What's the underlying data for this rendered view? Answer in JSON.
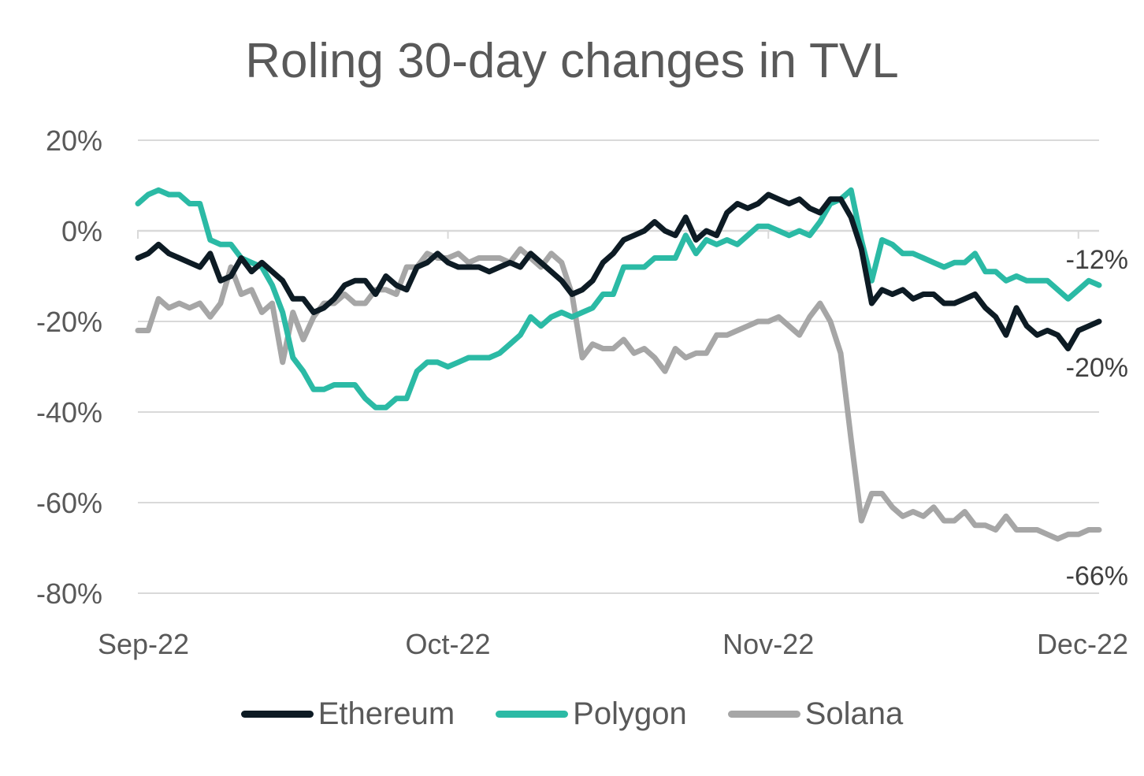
{
  "chart_data": {
    "type": "line",
    "title": "Roling 30-day changes in TVL",
    "xlabel": "",
    "ylabel": "",
    "ylim": [
      -80,
      20
    ],
    "y_ticks": [
      20,
      0,
      -20,
      -40,
      -60,
      -80
    ],
    "y_tick_labels": [
      "20%",
      "0%",
      "-20%",
      "-40%",
      "-60%",
      "-80%"
    ],
    "x_tick_labels": [
      "Sep-22",
      "Oct-22",
      "Nov-22",
      "Dec-22"
    ],
    "x_tick_dates": [
      "2022-09-01",
      "2022-10-01",
      "2022-11-01",
      "2022-12-01"
    ],
    "x_range": [
      "2022-09-01",
      "2022-12-03"
    ],
    "grid": "horizontal",
    "legend_position": "bottom",
    "series": [
      {
        "name": "Ethereum",
        "color": "#0d1b24",
        "end_label": "-20%",
        "points": [
          [
            "2022-09-01",
            -6
          ],
          [
            "2022-09-02",
            -5
          ],
          [
            "2022-09-03",
            -3
          ],
          [
            "2022-09-04",
            -5
          ],
          [
            "2022-09-05",
            -6
          ],
          [
            "2022-09-06",
            -7
          ],
          [
            "2022-09-07",
            -8
          ],
          [
            "2022-09-08",
            -5
          ],
          [
            "2022-09-09",
            -11
          ],
          [
            "2022-09-10",
            -10
          ],
          [
            "2022-09-11",
            -6
          ],
          [
            "2022-09-12",
            -9
          ],
          [
            "2022-09-13",
            -7
          ],
          [
            "2022-09-14",
            -9
          ],
          [
            "2022-09-15",
            -11
          ],
          [
            "2022-09-16",
            -15
          ],
          [
            "2022-09-17",
            -15
          ],
          [
            "2022-09-18",
            -18
          ],
          [
            "2022-09-19",
            -17
          ],
          [
            "2022-09-20",
            -15
          ],
          [
            "2022-09-21",
            -12
          ],
          [
            "2022-09-22",
            -11
          ],
          [
            "2022-09-23",
            -11
          ],
          [
            "2022-09-24",
            -14
          ],
          [
            "2022-09-25",
            -10
          ],
          [
            "2022-09-26",
            -12
          ],
          [
            "2022-09-27",
            -13
          ],
          [
            "2022-09-28",
            -8
          ],
          [
            "2022-09-29",
            -7
          ],
          [
            "2022-09-30",
            -5
          ],
          [
            "2022-10-01",
            -7
          ],
          [
            "2022-10-02",
            -8
          ],
          [
            "2022-10-03",
            -8
          ],
          [
            "2022-10-04",
            -8
          ],
          [
            "2022-10-05",
            -9
          ],
          [
            "2022-10-06",
            -8
          ],
          [
            "2022-10-07",
            -7
          ],
          [
            "2022-10-08",
            -8
          ],
          [
            "2022-10-09",
            -5
          ],
          [
            "2022-10-10",
            -7
          ],
          [
            "2022-10-11",
            -9
          ],
          [
            "2022-10-12",
            -11
          ],
          [
            "2022-10-13",
            -14
          ],
          [
            "2022-10-14",
            -13
          ],
          [
            "2022-10-15",
            -11
          ],
          [
            "2022-10-16",
            -7
          ],
          [
            "2022-10-17",
            -5
          ],
          [
            "2022-10-18",
            -2
          ],
          [
            "2022-10-19",
            -1
          ],
          [
            "2022-10-20",
            0
          ],
          [
            "2022-10-21",
            2
          ],
          [
            "2022-10-22",
            0
          ],
          [
            "2022-10-23",
            -1
          ],
          [
            "2022-10-24",
            3
          ],
          [
            "2022-10-25",
            -2
          ],
          [
            "2022-10-26",
            0
          ],
          [
            "2022-10-27",
            -1
          ],
          [
            "2022-10-28",
            4
          ],
          [
            "2022-10-29",
            6
          ],
          [
            "2022-10-30",
            5
          ],
          [
            "2022-10-31",
            6
          ],
          [
            "2022-11-01",
            8
          ],
          [
            "2022-11-02",
            7
          ],
          [
            "2022-11-03",
            6
          ],
          [
            "2022-11-04",
            7
          ],
          [
            "2022-11-05",
            5
          ],
          [
            "2022-11-06",
            4
          ],
          [
            "2022-11-07",
            7
          ],
          [
            "2022-11-08",
            7
          ],
          [
            "2022-11-09",
            3
          ],
          [
            "2022-11-10",
            -4
          ],
          [
            "2022-11-11",
            -16
          ],
          [
            "2022-11-12",
            -13
          ],
          [
            "2022-11-13",
            -14
          ],
          [
            "2022-11-14",
            -13
          ],
          [
            "2022-11-15",
            -15
          ],
          [
            "2022-11-16",
            -14
          ],
          [
            "2022-11-17",
            -14
          ],
          [
            "2022-11-18",
            -16
          ],
          [
            "2022-11-19",
            -16
          ],
          [
            "2022-11-20",
            -15
          ],
          [
            "2022-11-21",
            -14
          ],
          [
            "2022-11-22",
            -17
          ],
          [
            "2022-11-23",
            -19
          ],
          [
            "2022-11-24",
            -23
          ],
          [
            "2022-11-25",
            -17
          ],
          [
            "2022-11-26",
            -21
          ],
          [
            "2022-11-27",
            -23
          ],
          [
            "2022-11-28",
            -22
          ],
          [
            "2022-11-29",
            -23
          ],
          [
            "2022-11-30",
            -26
          ],
          [
            "2022-12-01",
            -22
          ],
          [
            "2022-12-02",
            -21
          ],
          [
            "2022-12-03",
            -20
          ]
        ]
      },
      {
        "name": "Polygon",
        "color": "#2bbaa5",
        "end_label": "-12%",
        "points": [
          [
            "2022-09-01",
            6
          ],
          [
            "2022-09-02",
            8
          ],
          [
            "2022-09-03",
            9
          ],
          [
            "2022-09-04",
            8
          ],
          [
            "2022-09-05",
            8
          ],
          [
            "2022-09-06",
            6
          ],
          [
            "2022-09-07",
            6
          ],
          [
            "2022-09-08",
            -2
          ],
          [
            "2022-09-09",
            -3
          ],
          [
            "2022-09-10",
            -3
          ],
          [
            "2022-09-11",
            -6
          ],
          [
            "2022-09-12",
            -7
          ],
          [
            "2022-09-13",
            -8
          ],
          [
            "2022-09-14",
            -12
          ],
          [
            "2022-09-15",
            -18
          ],
          [
            "2022-09-16",
            -28
          ],
          [
            "2022-09-17",
            -31
          ],
          [
            "2022-09-18",
            -35
          ],
          [
            "2022-09-19",
            -35
          ],
          [
            "2022-09-20",
            -34
          ],
          [
            "2022-09-21",
            -34
          ],
          [
            "2022-09-22",
            -34
          ],
          [
            "2022-09-23",
            -37
          ],
          [
            "2022-09-24",
            -39
          ],
          [
            "2022-09-25",
            -39
          ],
          [
            "2022-09-26",
            -37
          ],
          [
            "2022-09-27",
            -37
          ],
          [
            "2022-09-28",
            -31
          ],
          [
            "2022-09-29",
            -29
          ],
          [
            "2022-09-30",
            -29
          ],
          [
            "2022-10-01",
            -30
          ],
          [
            "2022-10-02",
            -29
          ],
          [
            "2022-10-03",
            -28
          ],
          [
            "2022-10-04",
            -28
          ],
          [
            "2022-10-05",
            -28
          ],
          [
            "2022-10-06",
            -27
          ],
          [
            "2022-10-07",
            -25
          ],
          [
            "2022-10-08",
            -23
          ],
          [
            "2022-10-09",
            -19
          ],
          [
            "2022-10-10",
            -21
          ],
          [
            "2022-10-11",
            -19
          ],
          [
            "2022-10-12",
            -18
          ],
          [
            "2022-10-13",
            -19
          ],
          [
            "2022-10-14",
            -18
          ],
          [
            "2022-10-15",
            -17
          ],
          [
            "2022-10-16",
            -14
          ],
          [
            "2022-10-17",
            -14
          ],
          [
            "2022-10-18",
            -8
          ],
          [
            "2022-10-19",
            -8
          ],
          [
            "2022-10-20",
            -8
          ],
          [
            "2022-10-21",
            -6
          ],
          [
            "2022-10-22",
            -6
          ],
          [
            "2022-10-23",
            -6
          ],
          [
            "2022-10-24",
            -1
          ],
          [
            "2022-10-25",
            -5
          ],
          [
            "2022-10-26",
            -2
          ],
          [
            "2022-10-27",
            -3
          ],
          [
            "2022-10-28",
            -2
          ],
          [
            "2022-10-29",
            -3
          ],
          [
            "2022-10-30",
            -1
          ],
          [
            "2022-10-31",
            1
          ],
          [
            "2022-11-01",
            1
          ],
          [
            "2022-11-02",
            0
          ],
          [
            "2022-11-03",
            -1
          ],
          [
            "2022-11-04",
            0
          ],
          [
            "2022-11-05",
            -1
          ],
          [
            "2022-11-06",
            2
          ],
          [
            "2022-11-07",
            6
          ],
          [
            "2022-11-08",
            7
          ],
          [
            "2022-11-09",
            9
          ],
          [
            "2022-11-10",
            -2
          ],
          [
            "2022-11-11",
            -11
          ],
          [
            "2022-11-12",
            -2
          ],
          [
            "2022-11-13",
            -3
          ],
          [
            "2022-11-14",
            -5
          ],
          [
            "2022-11-15",
            -5
          ],
          [
            "2022-11-16",
            -6
          ],
          [
            "2022-11-17",
            -7
          ],
          [
            "2022-11-18",
            -8
          ],
          [
            "2022-11-19",
            -7
          ],
          [
            "2022-11-20",
            -7
          ],
          [
            "2022-11-21",
            -5
          ],
          [
            "2022-11-22",
            -9
          ],
          [
            "2022-11-23",
            -9
          ],
          [
            "2022-11-24",
            -11
          ],
          [
            "2022-11-25",
            -10
          ],
          [
            "2022-11-26",
            -11
          ],
          [
            "2022-11-27",
            -11
          ],
          [
            "2022-11-28",
            -11
          ],
          [
            "2022-11-29",
            -13
          ],
          [
            "2022-11-30",
            -15
          ],
          [
            "2022-12-01",
            -13
          ],
          [
            "2022-12-02",
            -11
          ],
          [
            "2022-12-03",
            -12
          ]
        ]
      },
      {
        "name": "Solana",
        "color": "#a6a6a6",
        "end_label": "-66%",
        "points": [
          [
            "2022-09-01",
            -22
          ],
          [
            "2022-09-02",
            -22
          ],
          [
            "2022-09-03",
            -15
          ],
          [
            "2022-09-04",
            -17
          ],
          [
            "2022-09-05",
            -16
          ],
          [
            "2022-09-06",
            -17
          ],
          [
            "2022-09-07",
            -16
          ],
          [
            "2022-09-08",
            -19
          ],
          [
            "2022-09-09",
            -16
          ],
          [
            "2022-09-10",
            -8
          ],
          [
            "2022-09-11",
            -14
          ],
          [
            "2022-09-12",
            -13
          ],
          [
            "2022-09-13",
            -18
          ],
          [
            "2022-09-14",
            -16
          ],
          [
            "2022-09-15",
            -29
          ],
          [
            "2022-09-16",
            -18
          ],
          [
            "2022-09-17",
            -24
          ],
          [
            "2022-09-18",
            -19
          ],
          [
            "2022-09-19",
            -16
          ],
          [
            "2022-09-20",
            -16
          ],
          [
            "2022-09-21",
            -14
          ],
          [
            "2022-09-22",
            -16
          ],
          [
            "2022-09-23",
            -16
          ],
          [
            "2022-09-24",
            -13
          ],
          [
            "2022-09-25",
            -13
          ],
          [
            "2022-09-26",
            -14
          ],
          [
            "2022-09-27",
            -8
          ],
          [
            "2022-09-28",
            -8
          ],
          [
            "2022-09-29",
            -5
          ],
          [
            "2022-09-30",
            -6
          ],
          [
            "2022-10-01",
            -6
          ],
          [
            "2022-10-02",
            -5
          ],
          [
            "2022-10-03",
            -7
          ],
          [
            "2022-10-04",
            -6
          ],
          [
            "2022-10-05",
            -6
          ],
          [
            "2022-10-06",
            -6
          ],
          [
            "2022-10-07",
            -7
          ],
          [
            "2022-10-08",
            -4
          ],
          [
            "2022-10-09",
            -6
          ],
          [
            "2022-10-10",
            -8
          ],
          [
            "2022-10-11",
            -5
          ],
          [
            "2022-10-12",
            -7
          ],
          [
            "2022-10-13",
            -14
          ],
          [
            "2022-10-14",
            -28
          ],
          [
            "2022-10-15",
            -25
          ],
          [
            "2022-10-16",
            -26
          ],
          [
            "2022-10-17",
            -26
          ],
          [
            "2022-10-18",
            -24
          ],
          [
            "2022-10-19",
            -27
          ],
          [
            "2022-10-20",
            -26
          ],
          [
            "2022-10-21",
            -28
          ],
          [
            "2022-10-22",
            -31
          ],
          [
            "2022-10-23",
            -26
          ],
          [
            "2022-10-24",
            -28
          ],
          [
            "2022-10-25",
            -27
          ],
          [
            "2022-10-26",
            -27
          ],
          [
            "2022-10-27",
            -23
          ],
          [
            "2022-10-28",
            -23
          ],
          [
            "2022-10-29",
            -22
          ],
          [
            "2022-10-30",
            -21
          ],
          [
            "2022-10-31",
            -20
          ],
          [
            "2022-11-01",
            -20
          ],
          [
            "2022-11-02",
            -19
          ],
          [
            "2022-11-03",
            -21
          ],
          [
            "2022-11-04",
            -23
          ],
          [
            "2022-11-05",
            -19
          ],
          [
            "2022-11-06",
            -16
          ],
          [
            "2022-11-07",
            -20
          ],
          [
            "2022-11-08",
            -27
          ],
          [
            "2022-11-09",
            -46
          ],
          [
            "2022-11-10",
            -64
          ],
          [
            "2022-11-11",
            -58
          ],
          [
            "2022-11-12",
            -58
          ],
          [
            "2022-11-13",
            -61
          ],
          [
            "2022-11-14",
            -63
          ],
          [
            "2022-11-15",
            -62
          ],
          [
            "2022-11-16",
            -63
          ],
          [
            "2022-11-17",
            -61
          ],
          [
            "2022-11-18",
            -64
          ],
          [
            "2022-11-19",
            -64
          ],
          [
            "2022-11-20",
            -62
          ],
          [
            "2022-11-21",
            -65
          ],
          [
            "2022-11-22",
            -65
          ],
          [
            "2022-11-23",
            -66
          ],
          [
            "2022-11-24",
            -63
          ],
          [
            "2022-11-25",
            -66
          ],
          [
            "2022-11-26",
            -66
          ],
          [
            "2022-11-27",
            -66
          ],
          [
            "2022-11-28",
            -67
          ],
          [
            "2022-11-29",
            -68
          ],
          [
            "2022-11-30",
            -67
          ],
          [
            "2022-12-01",
            -67
          ],
          [
            "2022-12-02",
            -66
          ],
          [
            "2022-12-03",
            -66
          ]
        ]
      }
    ]
  }
}
